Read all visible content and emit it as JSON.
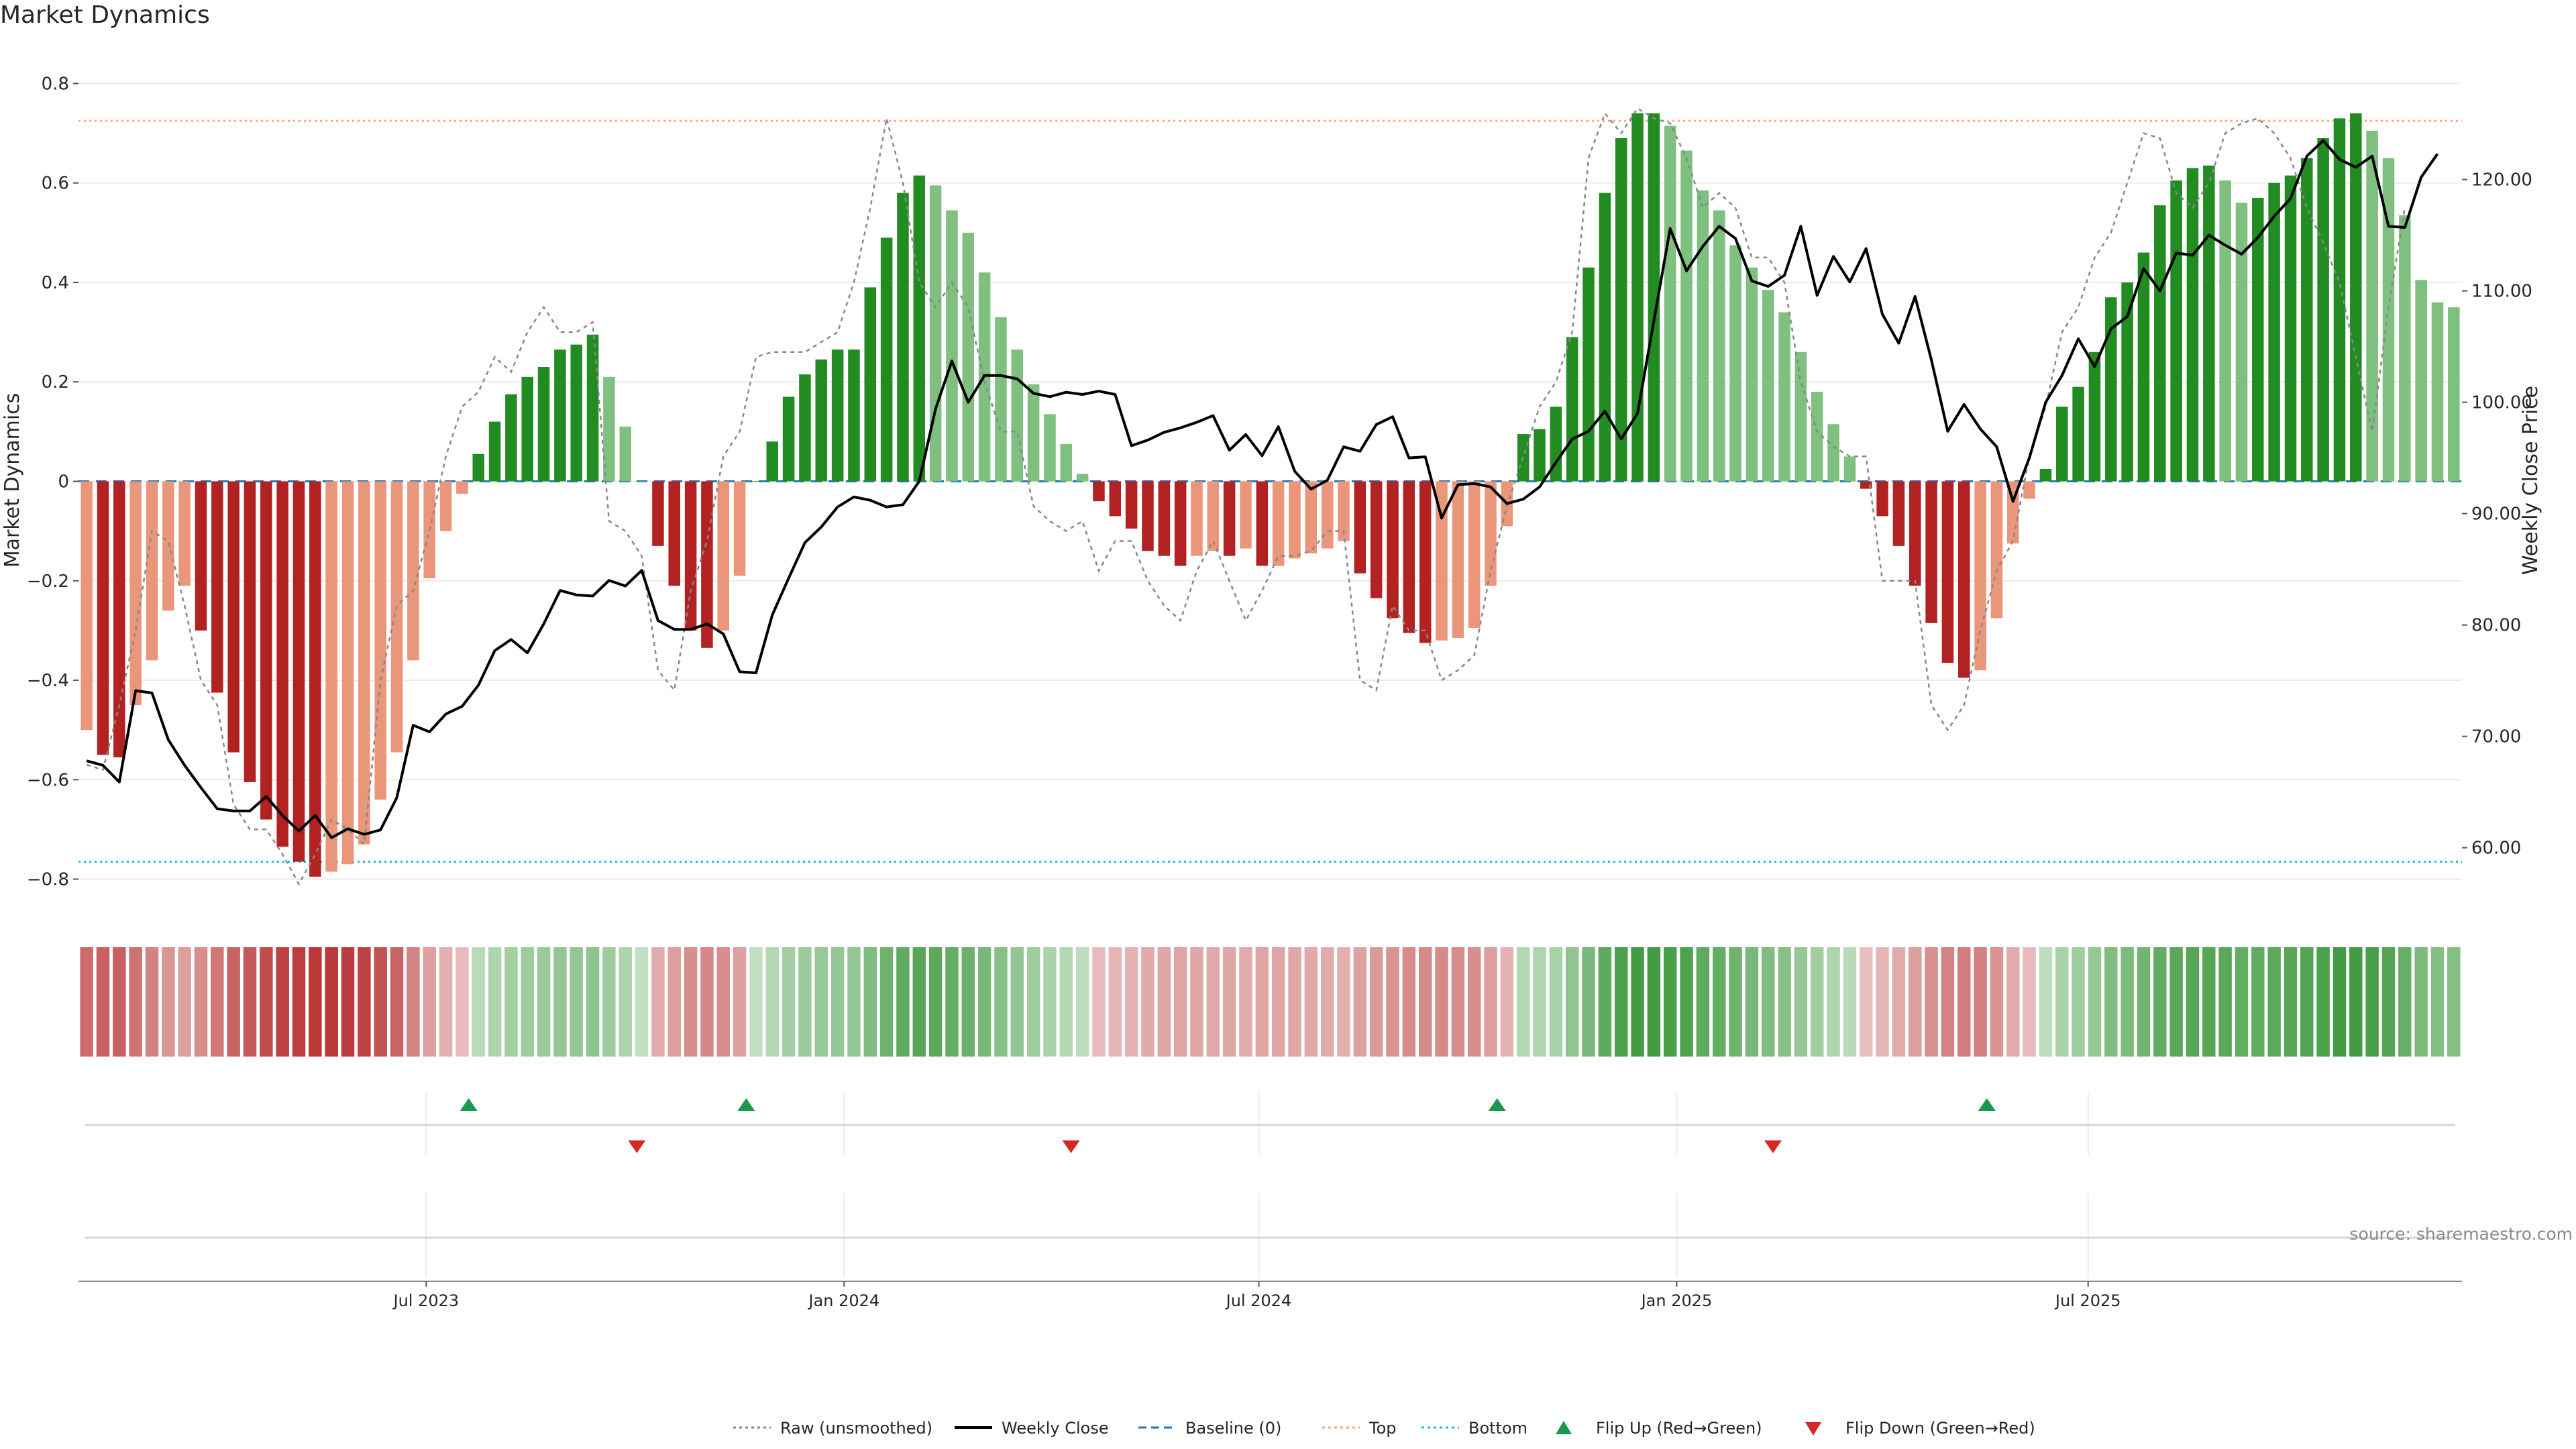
{
  "title": "Market Dynamics",
  "source": "source: sharemaestro.com",
  "colors": {
    "strong_green": "#228B22",
    "light_green": "#7fbf7f",
    "strong_red": "#b22222",
    "light_red": "#e9967a",
    "price_line": "#000000",
    "raw_line": "#888888",
    "baseline": "#1f77b4",
    "top_line": "#f4a582",
    "bottom_line": "#17becf",
    "flip_up": "#1a9850",
    "flip_down": "#d62728"
  },
  "chart_data": {
    "type": "bar",
    "title": "Market Dynamics",
    "ylabel": "Market Dynamics",
    "y2label": "Weekly Close Price",
    "ylim": [
      -0.86,
      0.86
    ],
    "y2lim": [
      54.5,
      131.3
    ],
    "yticks": [
      "0.8",
      "0.6",
      "0.4",
      "0.2",
      "0",
      "−0.2",
      "−0.4",
      "−0.6",
      "−0.8"
    ],
    "ytick_values": [
      0.8,
      0.6,
      0.4,
      0.2,
      0,
      -0.2,
      -0.4,
      -0.6,
      -0.8
    ],
    "y2ticks": [
      "120.00",
      "110.00",
      "100.00",
      "90.00",
      "80.00",
      "70.00",
      "60.00"
    ],
    "y2tick_values": [
      120,
      110,
      100,
      90,
      80,
      70,
      60
    ],
    "xticks": [
      "Jul 2023",
      "Jan 2024",
      "Jul 2024",
      "Jan 2025",
      "Jul 2025"
    ],
    "xtick_index": [
      20.8,
      46.4,
      71.8,
      97.4,
      122.6
    ],
    "top_level": 0.725,
    "bottom_level": -0.765,
    "baseline": 0,
    "series": [
      {
        "name": "Market Dynamics",
        "values": [
          -0.5,
          -0.55,
          -0.555,
          -0.45,
          -0.36,
          -0.26,
          -0.21,
          -0.3,
          -0.425,
          -0.545,
          -0.605,
          -0.68,
          -0.735,
          -0.765,
          -0.795,
          -0.785,
          -0.77,
          -0.73,
          -0.64,
          -0.545,
          -0.36,
          -0.195,
          -0.1,
          -0.025,
          0.055,
          0.12,
          0.175,
          0.21,
          0.23,
          0.265,
          0.275,
          0.295,
          0.21,
          0.11,
          0.0,
          -0.13,
          -0.21,
          -0.3,
          -0.335,
          -0.3,
          -0.19,
          0.0,
          0.08,
          0.17,
          0.215,
          0.245,
          0.265,
          0.265,
          0.39,
          0.49,
          0.58,
          0.615,
          0.595,
          0.545,
          0.5,
          0.42,
          0.33,
          0.265,
          0.195,
          0.135,
          0.075,
          0.015,
          -0.04,
          -0.07,
          -0.095,
          -0.14,
          -0.15,
          -0.17,
          -0.15,
          -0.14,
          -0.15,
          -0.135,
          -0.17,
          -0.17,
          -0.155,
          -0.145,
          -0.135,
          -0.12,
          -0.185,
          -0.235,
          -0.275,
          -0.305,
          -0.325,
          -0.32,
          -0.315,
          -0.295,
          -0.21,
          -0.09,
          0.095,
          0.105,
          0.15,
          0.29,
          0.43,
          0.58,
          0.69,
          0.74,
          0.74,
          0.715,
          0.665,
          0.585,
          0.545,
          0.475,
          0.43,
          0.385,
          0.34,
          0.26,
          0.18,
          0.115,
          0.05,
          -0.015,
          -0.07,
          -0.13,
          -0.21,
          -0.285,
          -0.365,
          -0.395,
          -0.38,
          -0.275,
          -0.125,
          -0.035,
          0.025,
          0.15,
          0.19,
          0.26,
          0.37,
          0.4,
          0.46,
          0.555,
          0.605,
          0.63,
          0.635,
          0.605,
          0.56,
          0.57,
          0.6,
          0.615,
          0.65,
          0.69,
          0.73,
          0.74,
          0.705,
          0.65,
          0.535,
          0.405,
          0.36,
          0.35
        ]
      },
      {
        "name": "Raw (unsmoothed)",
        "values": [
          -0.57,
          -0.58,
          -0.45,
          -0.3,
          -0.1,
          -0.12,
          -0.25,
          -0.4,
          -0.45,
          -0.65,
          -0.7,
          -0.7,
          -0.75,
          -0.81,
          -0.75,
          -0.68,
          -0.7,
          -0.73,
          -0.4,
          -0.25,
          -0.22,
          -0.1,
          0.05,
          0.15,
          0.18,
          0.25,
          0.22,
          0.3,
          0.35,
          0.3,
          0.3,
          0.32,
          -0.08,
          -0.1,
          -0.15,
          -0.38,
          -0.42,
          -0.22,
          -0.12,
          0.05,
          0.1,
          0.25,
          0.26,
          0.26,
          0.26,
          0.28,
          0.3,
          0.4,
          0.55,
          0.73,
          0.6,
          0.4,
          0.35,
          0.4,
          0.35,
          0.2,
          0.1,
          0.1,
          -0.05,
          -0.08,
          -0.1,
          -0.08,
          -0.18,
          -0.12,
          -0.12,
          -0.2,
          -0.25,
          -0.28,
          -0.18,
          -0.12,
          -0.2,
          -0.28,
          -0.22,
          -0.15,
          -0.15,
          -0.14,
          -0.1,
          -0.1,
          -0.4,
          -0.42,
          -0.25,
          -0.3,
          -0.3,
          -0.4,
          -0.38,
          -0.35,
          -0.18,
          -0.05,
          0.05,
          0.15,
          0.2,
          0.3,
          0.65,
          0.74,
          0.7,
          0.75,
          0.73,
          0.72,
          0.65,
          0.55,
          0.58,
          0.55,
          0.45,
          0.45,
          0.4,
          0.2,
          0.1,
          0.07,
          0.05,
          0.05,
          -0.2,
          -0.2,
          -0.2,
          -0.45,
          -0.5,
          -0.45,
          -0.3,
          -0.18,
          -0.12,
          0.05,
          0.15,
          0.3,
          0.35,
          0.45,
          0.5,
          0.6,
          0.7,
          0.69,
          0.58,
          0.55,
          0.6,
          0.7,
          0.72,
          0.73,
          0.7,
          0.65,
          0.55,
          0.48,
          0.4,
          0.25,
          0.1,
          0.35,
          0.55
        ]
      },
      {
        "name": "Weekly Close",
        "values": [
          67.8,
          67.4,
          65.9,
          74.1,
          73.9,
          69.7,
          67.4,
          65.4,
          63.5,
          63.3,
          63.3,
          64.6,
          62.9,
          61.5,
          62.9,
          60.9,
          61.7,
          61.2,
          61.6,
          64.5,
          71.0,
          70.4,
          72.0,
          72.7,
          74.6,
          77.7,
          78.7,
          77.5,
          80.1,
          83.1,
          82.7,
          82.6,
          84.0,
          83.5,
          84.9,
          80.4,
          79.6,
          79.6,
          80.1,
          79.2,
          75.8,
          75.7,
          80.9,
          84.2,
          87.4,
          88.8,
          90.6,
          91.5,
          91.2,
          90.6,
          90.8,
          92.9,
          99.4,
          103.7,
          100.0,
          102.4,
          102.4,
          102.1,
          100.8,
          100.5,
          100.9,
          100.7,
          101.0,
          100.7,
          96.1,
          96.6,
          97.3,
          97.7,
          98.2,
          98.8,
          95.7,
          97.1,
          95.2,
          97.8,
          93.8,
          92.2,
          93.0,
          96.0,
          95.6,
          98.0,
          98.7,
          95.0,
          95.1,
          89.6,
          92.6,
          92.7,
          92.4,
          90.9,
          91.3,
          92.4,
          94.6,
          96.7,
          97.4,
          99.2,
          96.7,
          99.0,
          107.3,
          115.6,
          111.8,
          114.0,
          115.8,
          114.7,
          110.9,
          110.4,
          111.4,
          115.8,
          109.6,
          113.1,
          110.8,
          113.8,
          107.9,
          105.3,
          109.5,
          103.8,
          97.4,
          99.8,
          97.6,
          96.0,
          91.1,
          95.0,
          100.0,
          102.4,
          105.7,
          103.2,
          106.6,
          107.7,
          112.0,
          110.0,
          113.4,
          113.2,
          115.0,
          114.1,
          113.3,
          114.8,
          116.7,
          118.3,
          122.1,
          123.5,
          121.8,
          121.1,
          122.1,
          115.8,
          115.7,
          120.2,
          122.3
        ]
      }
    ],
    "flip_up_index": [
      23.4,
      40.4,
      86.4,
      116.4
    ],
    "flip_down_index": [
      33.7,
      60.3,
      103.3
    ]
  },
  "legend": [
    {
      "label": "Raw (unsmoothed)",
      "style": "dotted",
      "color": "#888888"
    },
    {
      "label": "Weekly Close",
      "style": "solid",
      "color": "#000000"
    },
    {
      "label": "Baseline (0)",
      "style": "dashed",
      "color": "#1f77b4"
    },
    {
      "label": "Top",
      "style": "dotted",
      "color": "#f4a582"
    },
    {
      "label": "Bottom",
      "style": "dotted",
      "color": "#17becf"
    },
    {
      "label": "Flip Up (Red→Green)",
      "style": "triangle-up",
      "color": "#1a9850"
    },
    {
      "label": "Flip Down (Green→Red)",
      "style": "triangle-down",
      "color": "#d62728"
    }
  ]
}
